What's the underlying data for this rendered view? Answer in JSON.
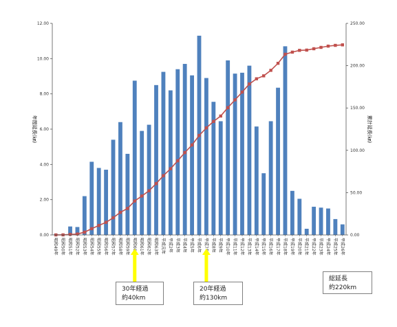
{
  "chart_data": {
    "type": "bar",
    "categories": [
      "昭和49年",
      "昭和50年",
      "昭和51年",
      "昭和52年",
      "昭和53年",
      "昭和54年",
      "昭和55年",
      "昭和56年",
      "昭和57年",
      "昭和58年",
      "昭和59年",
      "昭和60年",
      "昭和61年",
      "昭和62年",
      "昭和63年",
      "平成元年",
      "平成2年",
      "平成3年",
      "平成4年",
      "平成5年",
      "平成6年",
      "平成7年",
      "平成8年",
      "平成9年",
      "平成10年",
      "平成11年",
      "平成12年",
      "平成13年",
      "平成14年",
      "平成15年",
      "平成16年",
      "平成17年",
      "平成18年",
      "平成19年",
      "平成20年",
      "平成21年",
      "平成22年",
      "平成23年",
      "平成24年",
      "平成25年",
      "平成26年"
    ],
    "series": [
      {
        "axis": "left",
        "values": [
          0.05,
          0.05,
          0.48,
          0.45,
          2.2,
          4.15,
          3.8,
          3.7,
          5.4,
          6.4,
          4.6,
          8.75,
          5.9,
          6.25,
          8.5,
          9.25,
          8.2,
          9.4,
          9.7,
          9.05,
          11.3,
          8.9,
          7.55,
          6.45,
          9.9,
          9.15,
          9.2,
          9.6,
          6.15,
          3.5,
          6.45,
          8.35,
          10.7,
          2.5,
          2.05,
          0.35,
          1.6,
          1.55,
          1.5,
          0.9,
          0.6
        ]
      },
      {
        "axis": "right",
        "type": "line",
        "values": [
          0.05,
          0.1,
          0.6,
          1.1,
          3.3,
          7.4,
          11.2,
          14.9,
          20.3,
          26.7,
          31.3,
          40.1,
          46.0,
          52.2,
          60.7,
          70.0,
          78.2,
          87.6,
          97.3,
          106.3,
          117.6,
          126.5,
          134.1,
          140.5,
          150.4,
          159.6,
          168.8,
          178.4,
          184.5,
          188.0,
          194.5,
          202.8,
          213.5,
          216.0,
          218.1,
          218.4,
          220.0,
          221.6,
          223.1,
          224.0,
          224.6
        ]
      }
    ],
    "ylabel_left": "年間延長(㎞)",
    "ylabel_right": "累計延長(㎞)",
    "ylim_left": [
      0,
      12
    ],
    "ylim_right": [
      0,
      250
    ],
    "yticks_left": [
      "0.00",
      "2.00",
      "4.00",
      "6.00",
      "8.00",
      "10.00",
      "12.00"
    ],
    "yticks_right": [
      "0.00",
      "50.00",
      "100.00",
      "150.00",
      "200.00",
      "250.00"
    ],
    "grid": false,
    "legend": "none",
    "colors": {
      "bar": "#4f81bd",
      "line": "#c0504d",
      "marker": "#c0504d",
      "arrow": "#ffff00"
    }
  },
  "annotations": [
    {
      "line1": "30年経過",
      "line2": "約40km"
    },
    {
      "line1": "20年経過",
      "line2": "約130km"
    },
    {
      "line1": "総延長",
      "line2": "約220km"
    }
  ]
}
